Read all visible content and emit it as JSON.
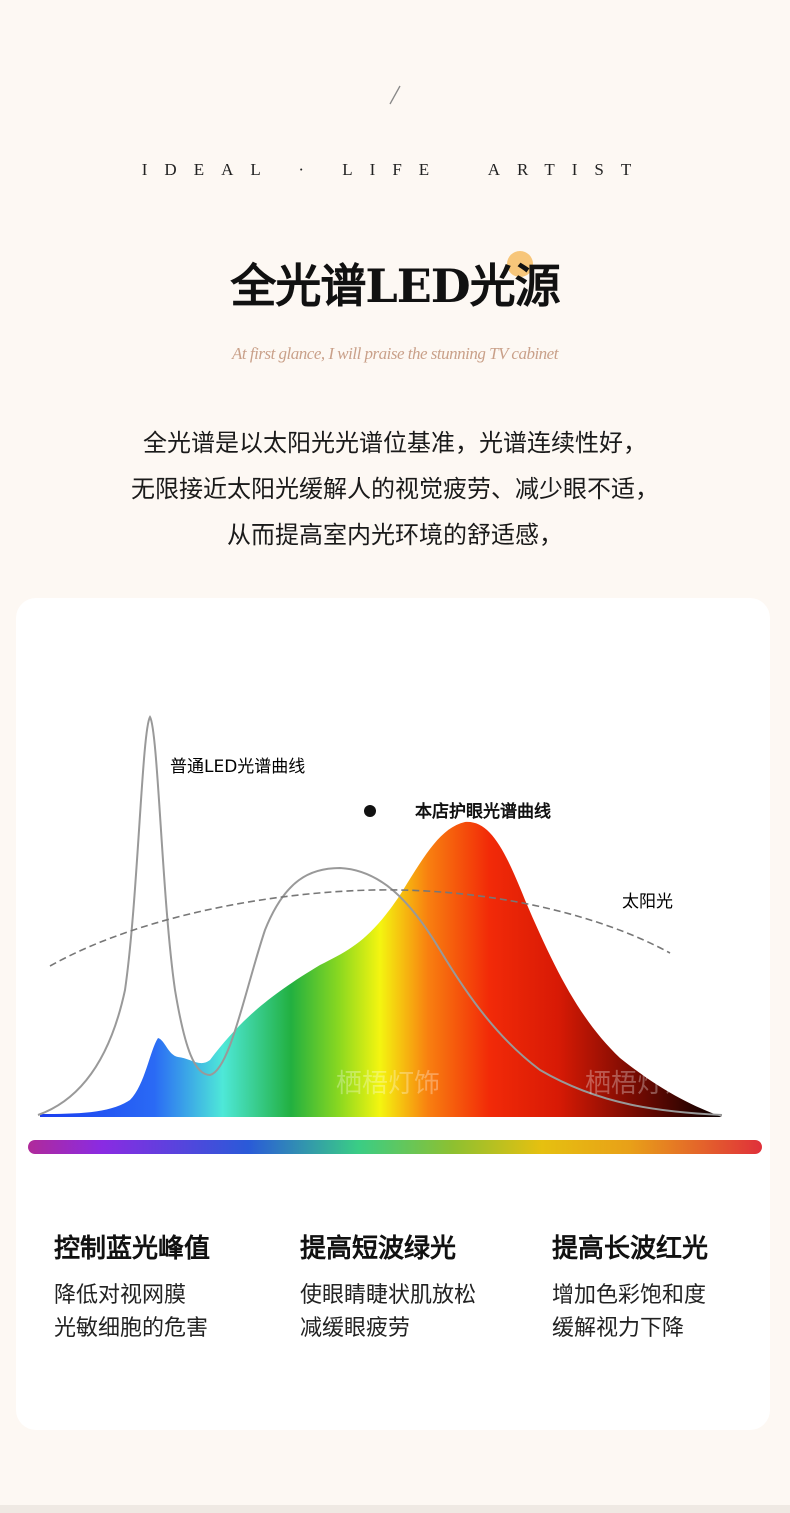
{
  "header": {
    "tagline": "IDEAL · LIFE  ARTIST",
    "title": "全光谱LED光源",
    "subtitle": "At first glance, I will praise the stunning TV cabinet",
    "description": [
      "全光谱是以太阳光光谱位基准，光谱连续性好，",
      "无限接近太阳光缓解人的视觉疲劳、减少眼不适，",
      "从而提高室内光环境的舒适感，"
    ]
  },
  "chart": {
    "labels": {
      "led": "普通LED光谱曲线",
      "store": "本店护眼光谱曲线",
      "sun": "太阳光"
    },
    "watermark": "栖梧灯饰",
    "colors": {
      "sun_accent": "#f7c67a",
      "led_curve": "#999999",
      "sun_curve": "#777777"
    }
  },
  "features": [
    {
      "title": "控制蓝光峰值",
      "lines": [
        "降低对视网膜",
        "光敏细胞的危害"
      ]
    },
    {
      "title": "提高短波绿光",
      "lines": [
        "使眼睛睫状肌放松",
        "减缓眼疲劳"
      ]
    },
    {
      "title": "提高长波红光",
      "lines": [
        "增加色彩饱和度",
        "缓解视力下降"
      ]
    }
  ]
}
